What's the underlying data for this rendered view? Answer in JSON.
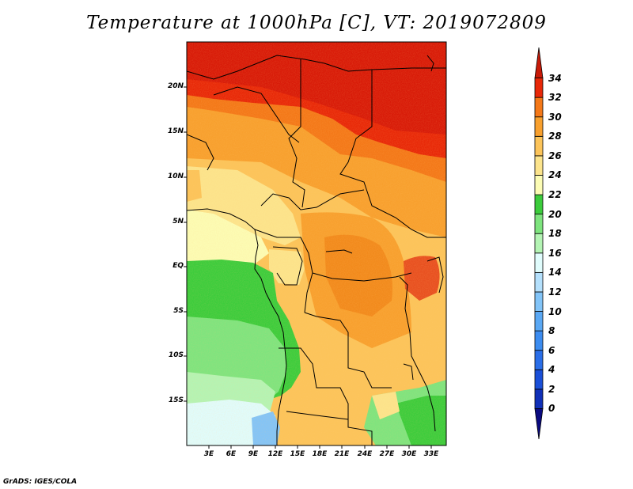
{
  "title": "Temperature at 1000hPa [C], VT: 2019072809",
  "lat_labels": [
    "20N",
    "15N",
    "10N",
    "5N",
    "EQ",
    "5S",
    "10S",
    "15S"
  ],
  "lon_labels": [
    "3E",
    "6E",
    "9E",
    "12E",
    "15E",
    "18E",
    "21E",
    "24E",
    "27E",
    "30E",
    "33E"
  ],
  "colorbar": {
    "labels": [
      "0",
      "2",
      "4",
      "6",
      "8",
      "10",
      "12",
      "14",
      "16",
      "18",
      "20",
      "22",
      "24",
      "26",
      "28",
      "30",
      "32",
      "34"
    ],
    "colors": [
      "#0a0a80",
      "#1030b8",
      "#1a4fd8",
      "#2a6ee8",
      "#3c8cf0",
      "#5aa8f4",
      "#82c4f8",
      "#b4e0fc",
      "#e0fcfc",
      "#b4f4b4",
      "#7ee47e",
      "#3ccc3c",
      "#fcfcb4",
      "#fce48c",
      "#fcc45a",
      "#f8a02e",
      "#f47818",
      "#e82808",
      "#c81a08"
    ]
  },
  "credit": "GrADS: IGES/COLA"
}
